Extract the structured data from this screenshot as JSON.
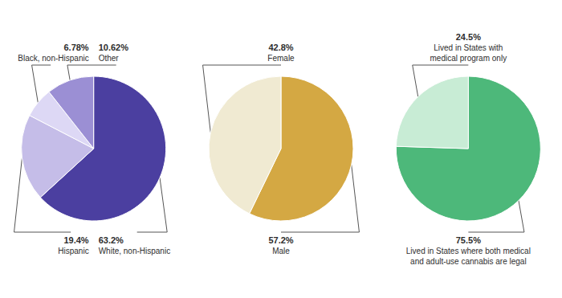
{
  "chart_data": [
    {
      "type": "pie",
      "categories": [
        "White, non-Hispanic",
        "Hispanic",
        "Black, non-Hispanic",
        "Other"
      ],
      "values": [
        63.2,
        19.4,
        6.78,
        10.62
      ],
      "value_labels": [
        "63.2%",
        "19.4%",
        "6.78%",
        "10.62%"
      ],
      "colors": [
        "#4b3fa0",
        "#c5bde8",
        "#ddd8f5",
        "#9b8fd4"
      ],
      "data_labels": true
    },
    {
      "type": "pie",
      "categories": [
        "Male",
        "Female"
      ],
      "values": [
        57.2,
        42.8
      ],
      "value_labels": [
        "57.2%",
        "42.8%"
      ],
      "colors": [
        "#d4a843",
        "#f0ead2"
      ],
      "data_labels": true
    },
    {
      "type": "pie",
      "categories": [
        "Lived in States where both medical\nand adult-use cannabis are legal",
        "Lived in States with\nmedical program only"
      ],
      "values": [
        75.5,
        24.5
      ],
      "value_labels": [
        "75.5%",
        "24.5%"
      ],
      "colors": [
        "#4db87a",
        "#c8ecd5"
      ],
      "data_labels": true
    }
  ]
}
